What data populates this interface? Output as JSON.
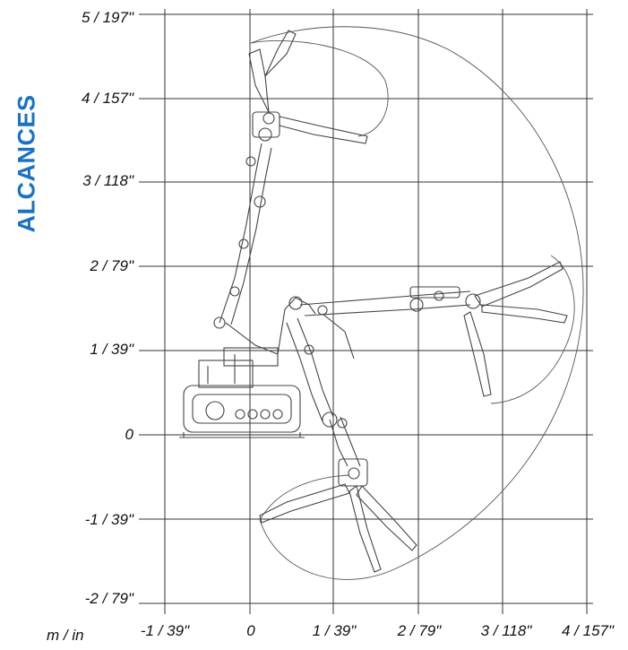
{
  "diagram": {
    "title": "ALCANCES",
    "unit_label": "m / in",
    "y_axis": {
      "ticks": [
        "5 / 197\"",
        "4 / 157\"",
        "3 / 118\"",
        "2 / 79\"",
        "1 / 39\"",
        "0",
        "-1 / 39\"",
        "-2 / 79\""
      ]
    },
    "x_axis": {
      "ticks": [
        "-1 / 39\"",
        "0",
        "1 / 39\"",
        "2 / 79\"",
        "3 / 118\"",
        "4 / 157\""
      ]
    },
    "colors": {
      "title": "#1a72c4",
      "grid": "#333333",
      "drawing": "#444444"
    }
  }
}
